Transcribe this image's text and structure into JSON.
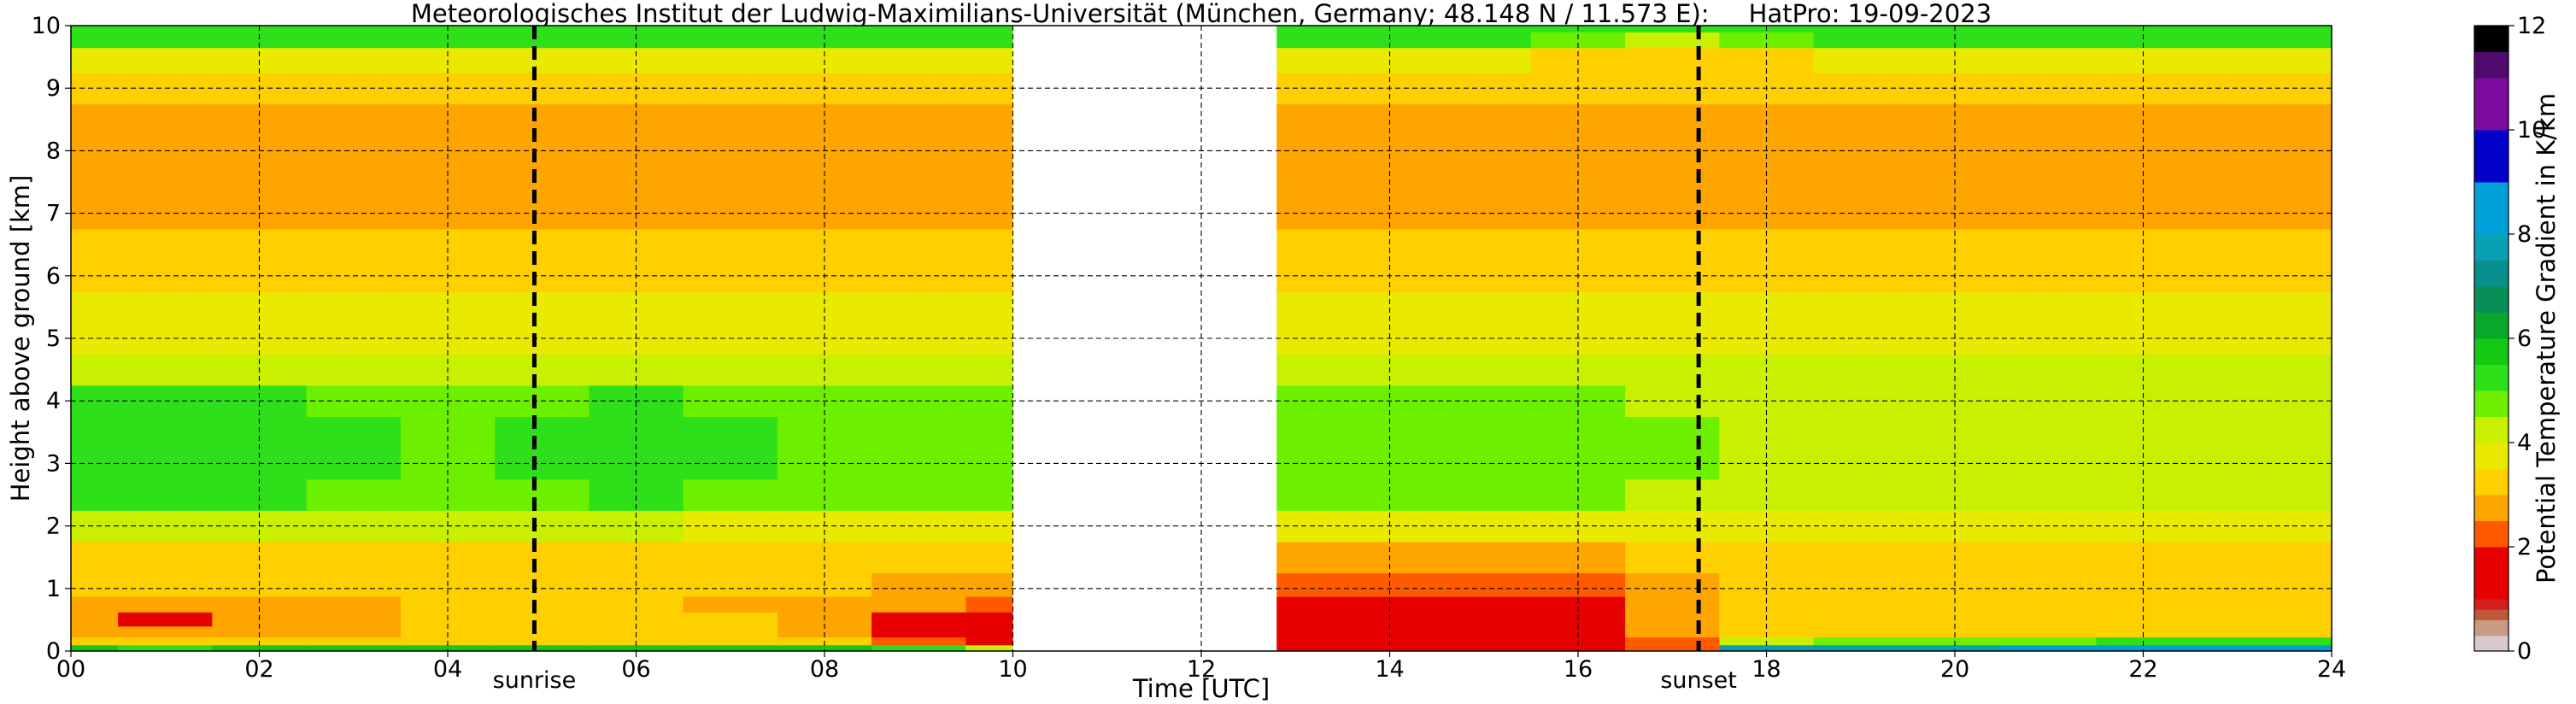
{
  "chart_data": {
    "type": "heatmap",
    "title": "Meteorologisches Institut der Ludwig-Maximilians-Universität (München, Germany; 48.148 N / 11.573 E):     HatPro: 19-09-2023",
    "xlabel": "Time [UTC]",
    "ylabel": "Height above ground [km]",
    "xlim": [
      0,
      24
    ],
    "ylim": [
      0,
      10
    ],
    "x_ticks": [
      "00",
      "02",
      "04",
      "06",
      "08",
      "10",
      "12",
      "14",
      "16",
      "18",
      "20",
      "22",
      "24"
    ],
    "y_ticks": [
      "0",
      "1",
      "2",
      "3",
      "4",
      "5",
      "6",
      "7",
      "8",
      "9",
      "10"
    ],
    "grid": true,
    "colorbar": {
      "label": "Potential Temperature Gradient in K/km",
      "range": [
        0,
        12
      ],
      "ticks": [
        "0",
        "2",
        "4",
        "6",
        "8",
        "10",
        "12"
      ],
      "colors": [
        {
          "from": 0.0,
          "to": 0.3,
          "color": "#d9c8cf"
        },
        {
          "from": 0.3,
          "to": 0.6,
          "color": "#c89a84"
        },
        {
          "from": 0.6,
          "to": 0.8,
          "color": "#c0563a"
        },
        {
          "from": 0.8,
          "to": 1.0,
          "color": "#d41f1f"
        },
        {
          "from": 1.0,
          "to": 2.0,
          "color": "#e60000"
        },
        {
          "from": 2.0,
          "to": 2.5,
          "color": "#ff5a00"
        },
        {
          "from": 2.5,
          "to": 3.0,
          "color": "#ffa500"
        },
        {
          "from": 3.0,
          "to": 3.5,
          "color": "#ffd000"
        },
        {
          "from": 3.5,
          "to": 4.0,
          "color": "#eaea00"
        },
        {
          "from": 4.0,
          "to": 4.5,
          "color": "#c8f000"
        },
        {
          "from": 4.5,
          "to": 5.0,
          "color": "#6cf000"
        },
        {
          "from": 5.0,
          "to": 5.5,
          "color": "#2ee01a"
        },
        {
          "from": 5.5,
          "to": 6.0,
          "color": "#14c814"
        },
        {
          "from": 6.0,
          "to": 6.5,
          "color": "#0aa82a"
        },
        {
          "from": 6.5,
          "to": 7.0,
          "color": "#088f58"
        },
        {
          "from": 7.0,
          "to": 7.5,
          "color": "#0a8f8f"
        },
        {
          "from": 7.5,
          "to": 8.0,
          "color": "#0aa0b4"
        },
        {
          "from": 8.0,
          "to": 9.0,
          "color": "#00a0d8"
        },
        {
          "from": 9.0,
          "to": 10.0,
          "color": "#0000c8"
        },
        {
          "from": 10.0,
          "to": 11.0,
          "color": "#7a0aa0"
        },
        {
          "from": 11.0,
          "to": 11.5,
          "color": "#500a6e"
        },
        {
          "from": 11.5,
          "to": 12.0,
          "color": "#000000"
        }
      ]
    },
    "missing_data": [
      [
        10.0,
        12.8
      ]
    ],
    "vertical_markers": [
      {
        "label": "sunrise",
        "x": 4.92,
        "style": "dashed-bold"
      },
      {
        "label": "sunset",
        "x": 17.28,
        "style": "dashed-bold"
      }
    ],
    "height_levels_km": [
      0.05,
      0.15,
      0.3,
      0.5,
      0.75,
      1.0,
      1.5,
      2.0,
      2.5,
      3.0,
      3.5,
      4.0,
      4.5,
      5.0,
      5.5,
      6.0,
      6.5,
      7.0,
      7.5,
      8.0,
      8.5,
      9.0,
      9.5,
      9.8,
      10.0
    ],
    "time_columns_utc": [
      0,
      1,
      2,
      3,
      4,
      5,
      6,
      7,
      8,
      9,
      10,
      13,
      14,
      15,
      16,
      17,
      18,
      19,
      20,
      21,
      22,
      23,
      24
    ],
    "gradient_values_k_per_km": [
      [
        5.5,
        5.2,
        5.5,
        5.5,
        5.5,
        5.5,
        5.5,
        5.5,
        5.5,
        5.0,
        4.0,
        1.0,
        1.0,
        1.0,
        1.5,
        2.0,
        7.5,
        7.5,
        7.5,
        8.0,
        8.0,
        8.0,
        8.0
      ],
      [
        3.0,
        3.0,
        3.0,
        3.0,
        3.0,
        3.0,
        3.0,
        3.0,
        3.0,
        2.0,
        1.0,
        1.0,
        1.0,
        1.0,
        1.0,
        2.0,
        4.0,
        4.5,
        4.5,
        4.5,
        5.0,
        5.0,
        5.0
      ],
      [
        2.5,
        2.5,
        2.5,
        2.8,
        3.0,
        3.0,
        3.0,
        3.0,
        2.5,
        1.5,
        1.5,
        1.5,
        1.5,
        1.5,
        1.5,
        2.5,
        3.0,
        3.2,
        3.3,
        3.3,
        3.3,
        3.3,
        3.3
      ],
      [
        2.5,
        1.5,
        2.5,
        2.8,
        3.0,
        3.0,
        3.0,
        3.0,
        2.5,
        1.8,
        1.8,
        1.5,
        1.5,
        1.5,
        1.5,
        2.5,
        3.0,
        3.2,
        3.3,
        3.3,
        3.3,
        3.3,
        3.3
      ],
      [
        2.8,
        2.8,
        2.8,
        2.8,
        3.0,
        3.0,
        3.0,
        2.8,
        2.8,
        2.5,
        2.3,
        1.8,
        1.8,
        1.8,
        1.8,
        2.5,
        3.0,
        3.2,
        3.3,
        3.3,
        3.3,
        3.3,
        3.3
      ],
      [
        3.0,
        3.0,
        3.0,
        3.0,
        3.0,
        3.0,
        3.0,
        3.0,
        3.0,
        2.8,
        2.8,
        2.2,
        2.2,
        2.2,
        2.2,
        2.8,
        3.0,
        3.2,
        3.3,
        3.3,
        3.3,
        3.3,
        3.3
      ],
      [
        3.3,
        3.3,
        3.3,
        3.3,
        3.3,
        3.3,
        3.3,
        3.3,
        3.2,
        3.0,
        3.0,
        2.8,
        2.8,
        2.8,
        2.8,
        3.0,
        3.2,
        3.3,
        3.3,
        3.3,
        3.3,
        3.3,
        3.3
      ],
      [
        4.0,
        4.0,
        4.0,
        4.0,
        4.0,
        4.0,
        4.0,
        3.8,
        3.7,
        3.5,
        3.5,
        3.5,
        3.5,
        3.5,
        3.5,
        3.5,
        3.6,
        3.7,
        3.7,
        3.7,
        3.7,
        3.7,
        3.7
      ],
      [
        5.0,
        5.0,
        5.0,
        4.8,
        4.6,
        4.8,
        5.0,
        4.8,
        4.6,
        4.5,
        4.5,
        4.5,
        4.5,
        4.5,
        4.5,
        4.3,
        4.2,
        4.2,
        4.2,
        4.2,
        4.2,
        4.2,
        4.2
      ],
      [
        5.3,
        5.3,
        5.3,
        5.0,
        4.8,
        5.0,
        5.3,
        5.0,
        4.8,
        4.8,
        4.8,
        4.8,
        4.8,
        4.8,
        4.8,
        4.5,
        4.3,
        4.3,
        4.3,
        4.3,
        4.3,
        4.3,
        4.3
      ],
      [
        5.3,
        5.3,
        5.3,
        5.0,
        4.8,
        5.0,
        5.3,
        5.0,
        4.8,
        4.8,
        4.8,
        4.5,
        4.5,
        4.6,
        4.6,
        4.5,
        4.3,
        4.3,
        4.3,
        4.3,
        4.3,
        4.3,
        4.3
      ],
      [
        5.0,
        5.0,
        5.0,
        4.8,
        4.6,
        4.8,
        5.0,
        4.8,
        4.6,
        4.6,
        4.6,
        4.8,
        4.5,
        4.5,
        4.5,
        4.3,
        4.2,
        4.2,
        4.2,
        4.2,
        4.2,
        4.2,
        4.2
      ],
      [
        4.3,
        4.3,
        4.3,
        4.2,
        4.2,
        4.2,
        4.3,
        4.2,
        4.2,
        4.2,
        4.2,
        4.2,
        4.1,
        4.1,
        4.1,
        4.0,
        4.0,
        4.0,
        4.0,
        4.0,
        4.0,
        4.0,
        4.0
      ],
      [
        3.9,
        3.9,
        3.9,
        3.9,
        3.9,
        3.9,
        3.9,
        3.9,
        3.9,
        3.9,
        3.9,
        3.8,
        3.8,
        3.8,
        3.8,
        3.8,
        3.8,
        3.8,
        3.8,
        3.8,
        3.8,
        3.8,
        3.8
      ],
      [
        3.7,
        3.7,
        3.7,
        3.7,
        3.7,
        3.7,
        3.7,
        3.7,
        3.7,
        3.7,
        3.7,
        3.6,
        3.6,
        3.6,
        3.6,
        3.6,
        3.6,
        3.6,
        3.6,
        3.6,
        3.6,
        3.6,
        3.6
      ],
      [
        3.4,
        3.4,
        3.4,
        3.4,
        3.4,
        3.4,
        3.4,
        3.4,
        3.4,
        3.4,
        3.4,
        3.3,
        3.3,
        3.3,
        3.3,
        3.3,
        3.3,
        3.3,
        3.3,
        3.3,
        3.3,
        3.3,
        3.3
      ],
      [
        3.1,
        3.1,
        3.1,
        3.1,
        3.1,
        3.1,
        3.1,
        3.1,
        3.1,
        3.1,
        3.1,
        3.1,
        3.1,
        3.1,
        3.1,
        3.1,
        3.1,
        3.1,
        3.1,
        3.1,
        3.1,
        3.1,
        3.1
      ],
      [
        2.9,
        2.9,
        2.9,
        2.9,
        2.9,
        2.9,
        2.9,
        2.9,
        2.9,
        2.9,
        2.9,
        2.9,
        2.9,
        2.9,
        2.9,
        2.9,
        2.9,
        2.9,
        2.9,
        2.9,
        2.9,
        2.9,
        2.9
      ],
      [
        2.8,
        2.8,
        2.8,
        2.8,
        2.8,
        2.8,
        2.8,
        2.8,
        2.8,
        2.8,
        2.8,
        2.8,
        2.8,
        2.8,
        2.8,
        2.8,
        2.8,
        2.8,
        2.8,
        2.8,
        2.8,
        2.8,
        2.8
      ],
      [
        2.7,
        2.7,
        2.7,
        2.7,
        2.7,
        2.7,
        2.7,
        2.7,
        2.7,
        2.7,
        2.7,
        2.7,
        2.7,
        2.7,
        2.6,
        2.6,
        2.7,
        2.7,
        2.7,
        2.7,
        2.7,
        2.7,
        2.7
      ],
      [
        2.6,
        2.6,
        2.6,
        2.6,
        2.6,
        2.6,
        2.6,
        2.6,
        2.6,
        2.6,
        2.6,
        2.6,
        2.6,
        2.6,
        2.6,
        2.6,
        2.6,
        2.6,
        2.6,
        2.6,
        2.6,
        2.6,
        2.6
      ],
      [
        3.0,
        3.0,
        3.0,
        3.0,
        3.0,
        3.0,
        3.0,
        3.0,
        3.0,
        3.0,
        3.0,
        3.0,
        3.0,
        3.0,
        3.0,
        3.0,
        3.0,
        3.0,
        3.0,
        3.0,
        3.0,
        3.0,
        3.0
      ],
      [
        3.8,
        3.8,
        3.8,
        3.8,
        3.8,
        3.8,
        3.8,
        3.8,
        3.8,
        3.8,
        3.8,
        3.6,
        3.6,
        3.6,
        3.4,
        3.3,
        3.4,
        3.6,
        3.6,
        3.6,
        3.6,
        3.6,
        3.6
      ],
      [
        5.3,
        5.3,
        5.3,
        5.3,
        5.3,
        5.3,
        5.3,
        5.3,
        5.3,
        5.3,
        5.3,
        5.0,
        5.0,
        5.0,
        4.5,
        4.0,
        4.5,
        5.0,
        5.0,
        5.0,
        5.0,
        5.0,
        5.0
      ],
      [
        5.3,
        5.3,
        5.3,
        5.3,
        5.3,
        5.3,
        5.3,
        5.3,
        5.3,
        5.3,
        5.3,
        5.3,
        5.3,
        5.3,
        5.3,
        5.3,
        5.3,
        5.3,
        5.3,
        5.3,
        5.3,
        5.3,
        5.3
      ]
    ]
  }
}
